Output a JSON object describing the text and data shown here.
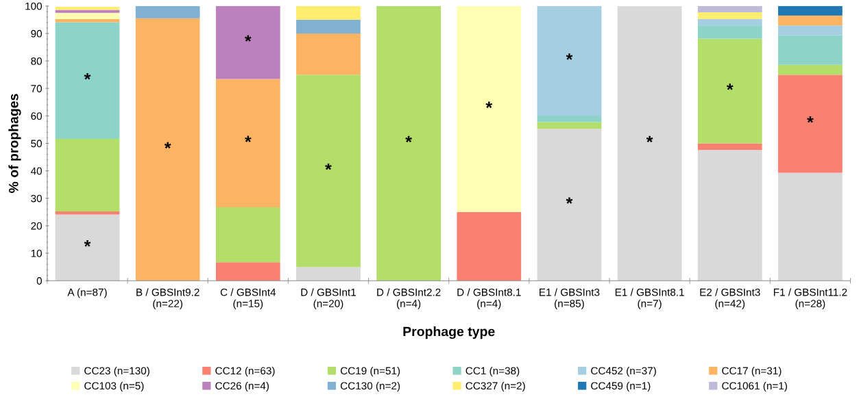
{
  "chart_data": {
    "type": "bar",
    "stacked": true,
    "xlabel": "Prophage type",
    "ylabel": "% of prophages",
    "categories": [
      "A (n=87)",
      "B / GBSInt9.2\n(n=22)",
      "C / GBSInt4\n(n=15)",
      "D / GBSInt1\n(n=20)",
      "D / GBSInt2.2\n(n=4)",
      "D / GBSInt8.1\n(n=4)",
      "E1 / GBSInt3\n(n=85)",
      "E1 / GBSInt8.1\n(n=7)",
      "E2 / GBSInt3\n(n=42)",
      "F1 / GBSInt11.2\n(n=28)"
    ],
    "series": [
      {
        "name": "CC23 (n=130)",
        "color": "#d9d9d9",
        "values": [
          24.1,
          0,
          0,
          5,
          0,
          0,
          55.3,
          100,
          47.6,
          39.3
        ],
        "value_labels": [
          "*",
          null,
          null,
          null,
          null,
          null,
          "*",
          "*",
          null,
          null
        ]
      },
      {
        "name": "CC12 (n=63)",
        "color": "#fa8072",
        "values": [
          1.1,
          0,
          6.7,
          0,
          0,
          25,
          0,
          0,
          2.4,
          35.7
        ],
        "value_labels": [
          null,
          null,
          null,
          null,
          null,
          null,
          null,
          null,
          null,
          "*"
        ]
      },
      {
        "name": "CC19 (n=51)",
        "color": "#b3de69",
        "values": [
          26.4,
          0,
          20,
          70,
          100,
          0,
          2.4,
          0,
          38.1,
          3.6
        ],
        "value_labels": [
          null,
          null,
          null,
          "*",
          "*",
          null,
          null,
          null,
          "*",
          null
        ]
      },
      {
        "name": "CC1 (n=38)",
        "color": "#8dd3c7",
        "values": [
          42.5,
          0,
          0,
          0,
          0,
          0,
          2.4,
          0,
          4.8,
          10.7
        ],
        "value_labels": [
          "*",
          null,
          null,
          null,
          null,
          null,
          null,
          null,
          null,
          null
        ]
      },
      {
        "name": "CC452 (n=37)",
        "color": "#a6cee3",
        "values": [
          0,
          0,
          0,
          0,
          0,
          0,
          40,
          0,
          2.4,
          3.6
        ],
        "value_labels": [
          null,
          null,
          null,
          null,
          null,
          null,
          "*",
          null,
          null,
          null
        ]
      },
      {
        "name": "CC17 (n=31)",
        "color": "#fdb462",
        "values": [
          1.1,
          95.5,
          46.7,
          15,
          0,
          0,
          0,
          0,
          0,
          3.6
        ],
        "value_labels": [
          null,
          "*",
          "*",
          null,
          null,
          null,
          null,
          null,
          null,
          null
        ]
      },
      {
        "name": "CC103 (n=5)",
        "color": "#ffffb3",
        "values": [
          2.3,
          0,
          0,
          0,
          0,
          75,
          0,
          0,
          0,
          0
        ],
        "value_labels": [
          null,
          null,
          null,
          null,
          null,
          "*",
          null,
          null,
          null,
          null
        ]
      },
      {
        "name": "CC26 (n=4)",
        "color": "#bc80bd",
        "values": [
          1.1,
          0,
          26.7,
          0,
          0,
          0,
          0,
          0,
          0,
          0
        ],
        "value_labels": [
          null,
          null,
          "*",
          null,
          null,
          null,
          null,
          null,
          null,
          null
        ]
      },
      {
        "name": "CC130 (n=2)",
        "color": "#80b1d3",
        "values": [
          0,
          4.5,
          0,
          5,
          0,
          0,
          0,
          0,
          0,
          0
        ]
      },
      {
        "name": "CC327 (n=2)",
        "color": "#ffed6f",
        "values": [
          1.1,
          0,
          0,
          5,
          0,
          0,
          0,
          0,
          2.4,
          0
        ]
      },
      {
        "name": "CC459 (n=1)",
        "color": "#1f78b4",
        "values": [
          0,
          0,
          0,
          0,
          0,
          0,
          0,
          0,
          0,
          3.6
        ]
      },
      {
        "name": "CC1061 (n=1)",
        "color": "#bebada",
        "values": [
          0,
          0,
          0,
          0,
          0,
          0,
          0,
          0,
          2.4,
          0
        ]
      }
    ],
    "ylim": [
      0,
      100
    ],
    "yticks": [
      0,
      10,
      20,
      30,
      40,
      50,
      60,
      70,
      80,
      90,
      100
    ],
    "grid": false,
    "legend": "bottom"
  }
}
